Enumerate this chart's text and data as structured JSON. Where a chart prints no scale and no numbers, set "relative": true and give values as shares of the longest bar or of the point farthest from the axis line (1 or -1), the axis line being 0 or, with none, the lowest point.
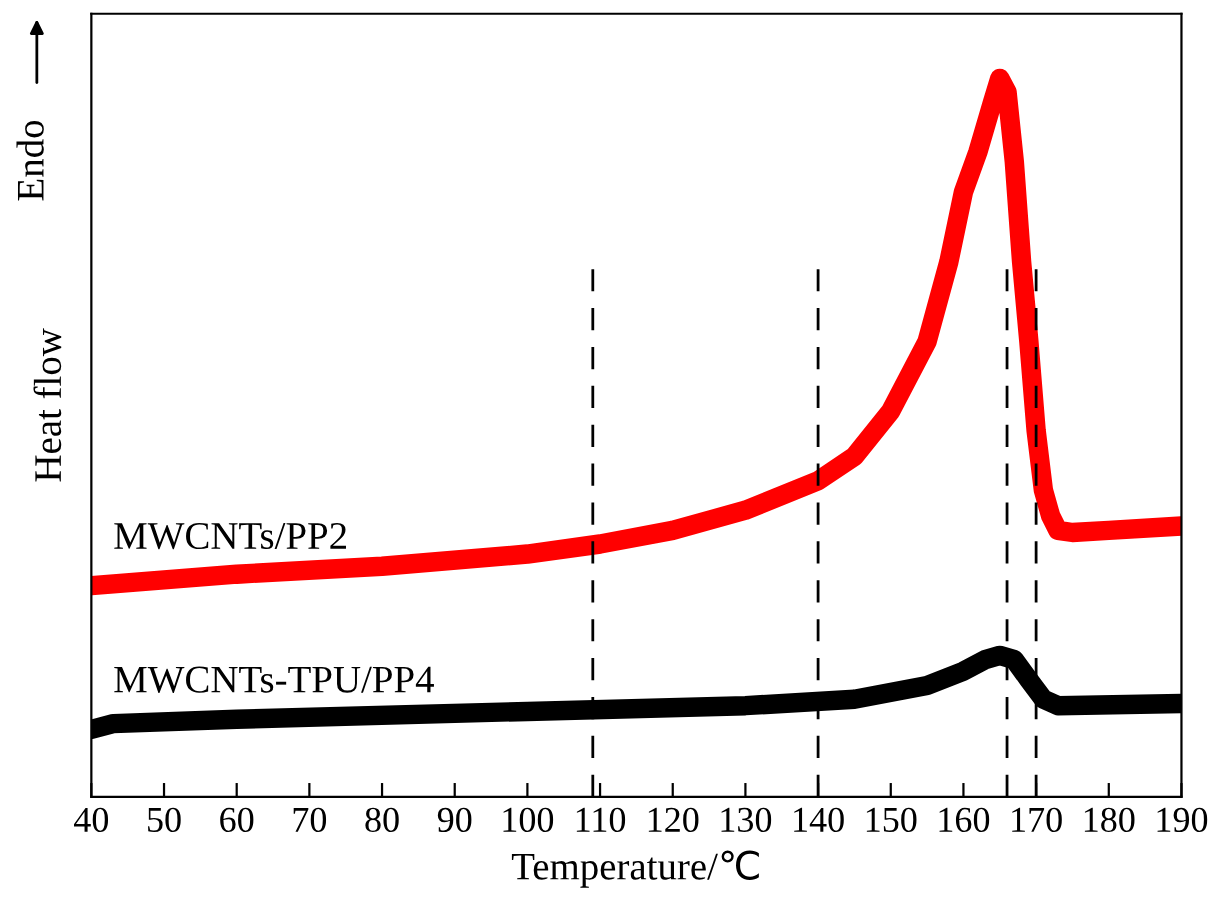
{
  "chart_data": {
    "type": "line",
    "xlabel": "Temperature/℃",
    "ylabel": "Heat flow",
    "relative": true,
    "xlim": [
      40,
      190
    ],
    "xticks": [
      40,
      50,
      60,
      70,
      80,
      90,
      100,
      110,
      120,
      130,
      140,
      150,
      160,
      170,
      180,
      190
    ],
    "grid": false,
    "legend": false,
    "marker": "none",
    "line_style": "solid",
    "annotations": [
      "Endo"
    ],
    "ref_lines": [
      {
        "axis": "x",
        "value": 109,
        "color": "#000000",
        "line_style": "dashed"
      },
      {
        "axis": "x",
        "value": 140,
        "color": "#000000",
        "line_style": "dashed"
      },
      {
        "axis": "x",
        "value": 166,
        "color": "#000000",
        "line_style": "dashed"
      },
      {
        "axis": "x",
        "value": 170,
        "color": "#000000",
        "line_style": "dashed"
      }
    ],
    "series": [
      {
        "name": "MWCNTs/PP2",
        "color": "#ff0000",
        "x": [
          40,
          60,
          80,
          100,
          110,
          120,
          130,
          140,
          145,
          150,
          155,
          158,
          160,
          162,
          164,
          165,
          166,
          167,
          168,
          169,
          170,
          171,
          172,
          173,
          175,
          180,
          190
        ],
        "values": [
          0.294,
          0.31,
          0.321,
          0.338,
          0.352,
          0.371,
          0.399,
          0.44,
          0.474,
          0.537,
          0.634,
          0.745,
          0.842,
          0.898,
          0.967,
          1,
          0.981,
          0.884,
          0.745,
          0.634,
          0.51,
          0.427,
          0.391,
          0.371,
          0.368,
          0.371,
          0.377
        ]
      },
      {
        "name": "MWCNTs-TPU/PP4",
        "color": "#000000",
        "x": [
          40,
          43,
          60,
          100,
          130,
          145,
          155,
          160,
          163,
          165,
          167,
          169,
          171,
          173,
          190
        ],
        "values": [
          0.094,
          0.102,
          0.108,
          0.119,
          0.127,
          0.136,
          0.155,
          0.175,
          0.191,
          0.197,
          0.191,
          0.163,
          0.136,
          0.127,
          0.13
        ]
      }
    ]
  }
}
